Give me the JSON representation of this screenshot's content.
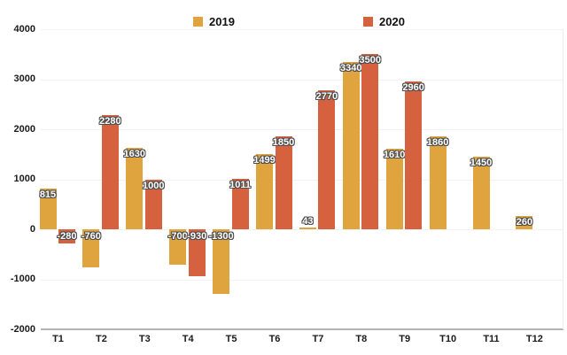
{
  "legend": {
    "items": [
      {
        "label": "2019",
        "color": "#dfa43e"
      },
      {
        "label": "2020",
        "color": "#d6613f"
      }
    ]
  },
  "chart_data": {
    "type": "bar",
    "title": "",
    "xlabel": "",
    "ylabel": "",
    "categories": [
      "T1",
      "T2",
      "T3",
      "T4",
      "T5",
      "T6",
      "T7",
      "T8",
      "T9",
      "T10",
      "T11",
      "T12"
    ],
    "series": [
      {
        "name": "2019",
        "color": "#dfa43e",
        "values": [
          815,
          -760,
          1630,
          -700,
          -1300,
          1499,
          43,
          3340,
          1610,
          1860,
          1450,
          260
        ]
      },
      {
        "name": "2020",
        "color": "#d6613f",
        "values": [
          -280,
          2280,
          1000,
          -930,
          1011,
          1850,
          2770,
          3500,
          2960,
          null,
          null,
          null
        ]
      }
    ],
    "ylim": [
      -2000,
      4000
    ],
    "ytick_step": 1000,
    "ytick_labels": [
      "4000",
      "3000",
      "2000",
      "1000",
      "0",
      "-1000",
      "-2000"
    ],
    "grid": "horizontal",
    "legend_position": "top",
    "data_labels": "on"
  }
}
